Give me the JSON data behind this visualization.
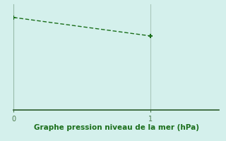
{
  "x": [
    0,
    1
  ],
  "y": [
    1025,
    1018
  ],
  "line_color": "#1a6e1a",
  "marker_color": "#1a6e1a",
  "background_color": "#d4f0ec",
  "axes_bg_color": "#d4f0ec",
  "xlabel": "Graphe pression niveau de la mer (hPa)",
  "xlabel_color": "#1a6e1a",
  "tick_color": "#4a7a4a",
  "axis_color": "#99bbaa",
  "xlim": [
    0,
    1.5
  ],
  "ylim": [
    990,
    1030
  ],
  "xticks": [
    0,
    1
  ],
  "xlabel_fontsize": 7.5,
  "tick_fontsize": 7,
  "line_width": 1.0,
  "marker_size": 5,
  "vline_x": 1,
  "vline_color": "#aac8bb",
  "left_spine_color": "#99bbaa",
  "bottom_spine_color": "#2a5a2a"
}
